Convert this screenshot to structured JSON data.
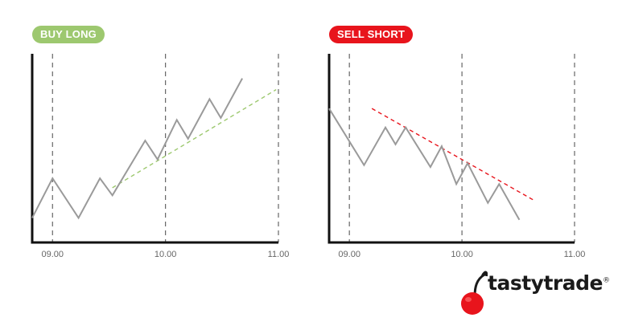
{
  "colors": {
    "buy_long": "#9dc86f",
    "sell_short": "#e8141c",
    "price_line": "#9a9a9a",
    "axis": "#111111",
    "gridline": "#666666",
    "brand_red": "#e8141c"
  },
  "chart_data": [
    {
      "type": "line",
      "label": "BUY LONG",
      "x_ticks": [
        "09.00",
        "10.00",
        "11.00"
      ],
      "xlim": [
        8.82,
        11.0
      ],
      "ylim": [
        0,
        100
      ],
      "grid": "vertical dashed at ticks",
      "series": [
        {
          "values": [
            {
              "x": 8.82,
              "y": 13
            },
            {
              "x": 9.0,
              "y": 34
            },
            {
              "x": 9.23,
              "y": 13
            },
            {
              "x": 9.42,
              "y": 34
            },
            {
              "x": 9.53,
              "y": 25
            },
            {
              "x": 9.82,
              "y": 54
            },
            {
              "x": 9.93,
              "y": 44
            },
            {
              "x": 10.1,
              "y": 65
            },
            {
              "x": 10.2,
              "y": 55
            },
            {
              "x": 10.39,
              "y": 76
            },
            {
              "x": 10.49,
              "y": 66
            },
            {
              "x": 10.68,
              "y": 87
            }
          ]
        }
      ],
      "trendline": {
        "style": "dashed",
        "color": "buy_long",
        "values": [
          {
            "x": 9.53,
            "y": 29
          },
          {
            "x": 10.98,
            "y": 81
          }
        ]
      }
    },
    {
      "type": "line",
      "label": "SELL SHORT",
      "x_ticks": [
        "09.00",
        "10.00",
        "11.00"
      ],
      "xlim": [
        8.82,
        11.0
      ],
      "ylim": [
        0,
        100
      ],
      "grid": "vertical dashed at ticks",
      "series": [
        {
          "values": [
            {
              "x": 8.82,
              "y": 71
            },
            {
              "x": 9.13,
              "y": 41
            },
            {
              "x": 9.32,
              "y": 61
            },
            {
              "x": 9.41,
              "y": 52
            },
            {
              "x": 9.5,
              "y": 61
            },
            {
              "x": 9.72,
              "y": 40
            },
            {
              "x": 9.82,
              "y": 51
            },
            {
              "x": 9.95,
              "y": 31
            },
            {
              "x": 10.05,
              "y": 42
            },
            {
              "x": 10.23,
              "y": 21
            },
            {
              "x": 10.33,
              "y": 31
            },
            {
              "x": 10.51,
              "y": 12
            }
          ]
        }
      ],
      "trendline": {
        "style": "dashed",
        "color": "sell_short",
        "values": [
          {
            "x": 9.2,
            "y": 71
          },
          {
            "x": 10.65,
            "y": 22
          }
        ]
      }
    }
  ],
  "brand": {
    "name": "tastytrade",
    "reg": "®",
    "icon": "cherry-icon"
  }
}
